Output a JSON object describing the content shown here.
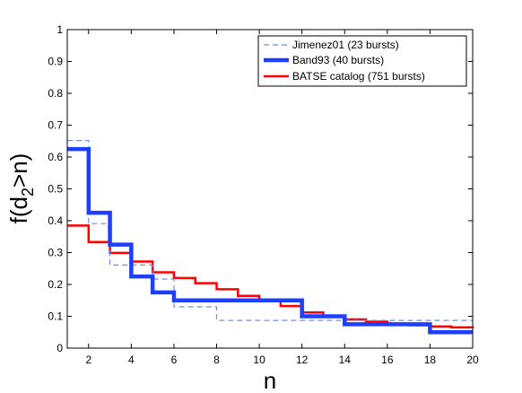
{
  "chart_data": {
    "type": "line",
    "step": true,
    "xlabel": "n",
    "ylabel": {
      "main": "f(d",
      "subscript": "2",
      "tail": ">n)"
    },
    "xlim": [
      1,
      20
    ],
    "ylim": [
      0,
      1
    ],
    "xticks": [
      2,
      4,
      6,
      8,
      10,
      12,
      14,
      16,
      18,
      20
    ],
    "yticks": [
      0,
      0.1,
      0.2,
      0.3,
      0.4,
      0.5,
      0.6,
      0.7,
      0.8,
      0.9,
      1
    ],
    "grid": false,
    "legend_position": "top-right",
    "series": [
      {
        "name": "Jimenez01 (23 bursts)",
        "color": "#6b8cff",
        "style": "dashed",
        "x": [
          1,
          2,
          3,
          4,
          5,
          6,
          7,
          8,
          9,
          10,
          11,
          12,
          13,
          14,
          15,
          16,
          17,
          18,
          19,
          20
        ],
        "y": [
          0.652,
          0.391,
          0.261,
          0.261,
          0.217,
          0.13,
          0.13,
          0.087,
          0.087,
          0.087,
          0.087,
          0.087,
          0.087,
          0.087,
          0.087,
          0.087,
          0.087,
          0.087,
          0.087,
          0.087
        ]
      },
      {
        "name": "Band93 (40 bursts)",
        "color": "#1f3fff",
        "style": "solid",
        "x": [
          1,
          2,
          3,
          4,
          5,
          6,
          7,
          8,
          9,
          10,
          11,
          12,
          13,
          14,
          15,
          16,
          17,
          18,
          19,
          20
        ],
        "y": [
          0.625,
          0.425,
          0.325,
          0.225,
          0.175,
          0.15,
          0.15,
          0.15,
          0.15,
          0.15,
          0.15,
          0.1,
          0.1,
          0.075,
          0.075,
          0.075,
          0.075,
          0.05,
          0.05,
          0.05
        ]
      },
      {
        "name": "BATSE catalog (751 bursts)",
        "color": "#ff0000",
        "style": "solid",
        "x": [
          1,
          2,
          3,
          4,
          5,
          6,
          7,
          8,
          9,
          10,
          11,
          12,
          13,
          14,
          15,
          16,
          17,
          18,
          19,
          20
        ],
        "y": [
          0.385,
          0.333,
          0.299,
          0.272,
          0.238,
          0.22,
          0.204,
          0.185,
          0.164,
          0.15,
          0.132,
          0.112,
          0.098,
          0.09,
          0.083,
          0.077,
          0.072,
          0.068,
          0.065,
          0.062
        ]
      }
    ]
  }
}
